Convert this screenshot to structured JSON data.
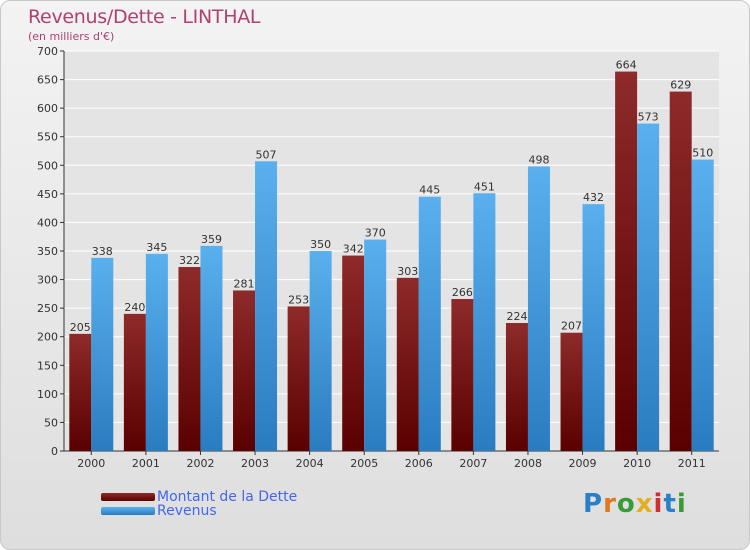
{
  "title": "Revenus/Dette - LINTHAL",
  "subtitle": "(en milliers d'€)",
  "logo_text": "Proxiti",
  "colors": {
    "debt": "#7a1010",
    "revenue": "#4ca6e6",
    "axis": "#333333",
    "grid": "#ffffff",
    "title": "#b04070",
    "legend_text": "#4466ee"
  },
  "chart_data": {
    "type": "bar",
    "title": "Revenus/Dette - LINTHAL",
    "subtitle": "(en milliers d'€)",
    "categories": [
      "2000",
      "2001",
      "2002",
      "2003",
      "2004",
      "2005",
      "2006",
      "2007",
      "2008",
      "2009",
      "2010",
      "2011"
    ],
    "series": [
      {
        "name": "Montant de la Dette",
        "values": [
          205,
          240,
          322,
          281,
          253,
          342,
          303,
          266,
          224,
          207,
          664,
          629
        ]
      },
      {
        "name": "Revenus",
        "values": [
          338,
          345,
          359,
          507,
          350,
          370,
          445,
          451,
          498,
          432,
          573,
          510
        ]
      }
    ],
    "ylim": [
      0,
      700
    ],
    "ytick_step": 50,
    "grid": true,
    "legend_position": "bottom-left"
  }
}
